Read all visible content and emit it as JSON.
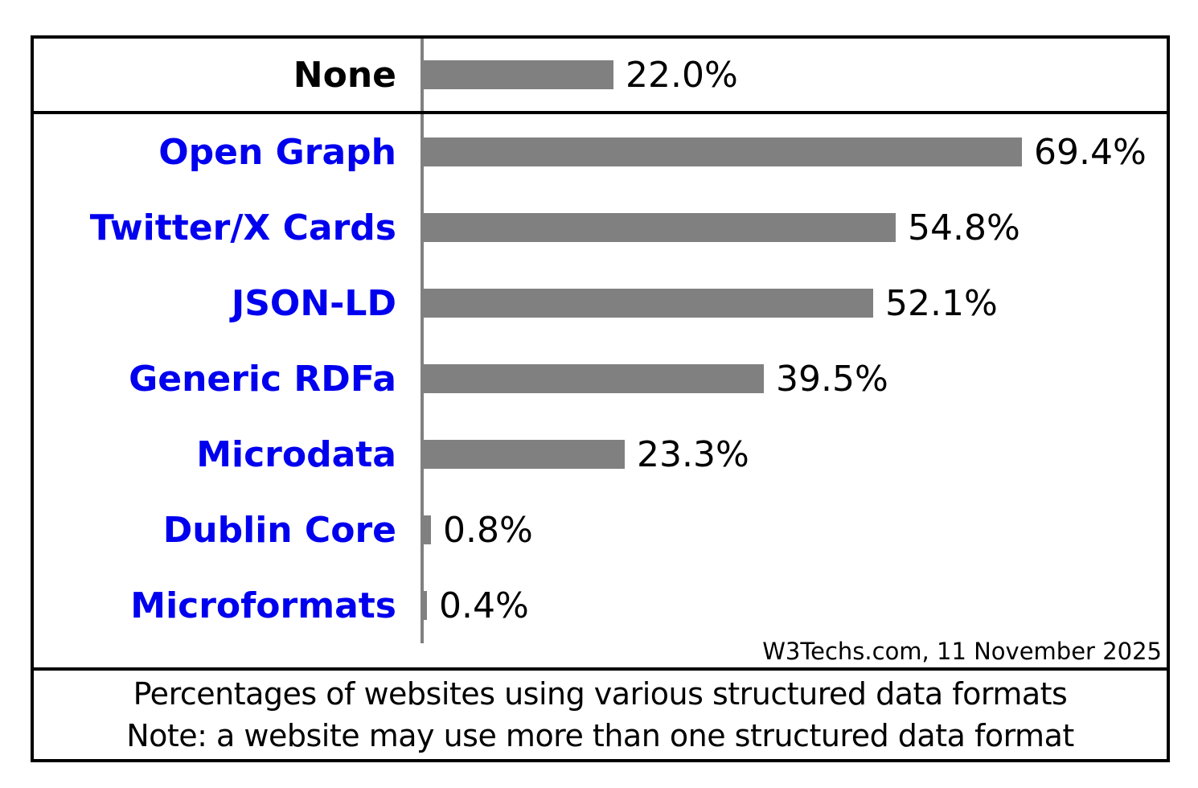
{
  "chart_data": {
    "type": "bar",
    "orientation": "horizontal",
    "unit": "%",
    "title": "Percentages of websites using various structured data formats",
    "note": "Note: a website may use more than one structured data format",
    "source": "W3Techs.com, 11 November 2025",
    "xlim": [
      0,
      87
    ],
    "grid": false,
    "legend": "none",
    "bar_color": "#808080",
    "axis_line_color": "#808080",
    "link_label_color": "#0000EE",
    "plain_label_color": "#000000",
    "categories": [
      "None",
      "Open Graph",
      "Twitter/X Cards",
      "JSON-LD",
      "Generic RDFa",
      "Microdata",
      "Dublin Core",
      "Microformats"
    ],
    "values": [
      22.0,
      69.4,
      54.8,
      52.1,
      39.5,
      23.3,
      0.8,
      0.4
    ],
    "value_labels": [
      "22.0%",
      "69.4%",
      "54.8%",
      "52.1%",
      "39.5%",
      "23.3%",
      "0.8%",
      "0.4%"
    ],
    "is_link": [
      false,
      true,
      true,
      true,
      true,
      true,
      true,
      true
    ]
  },
  "caption": {
    "line1": "Percentages of websites using various structured data formats",
    "line2": "Note: a website may use more than one structured data format"
  },
  "attribution": "W3Techs.com, 11 November 2025"
}
